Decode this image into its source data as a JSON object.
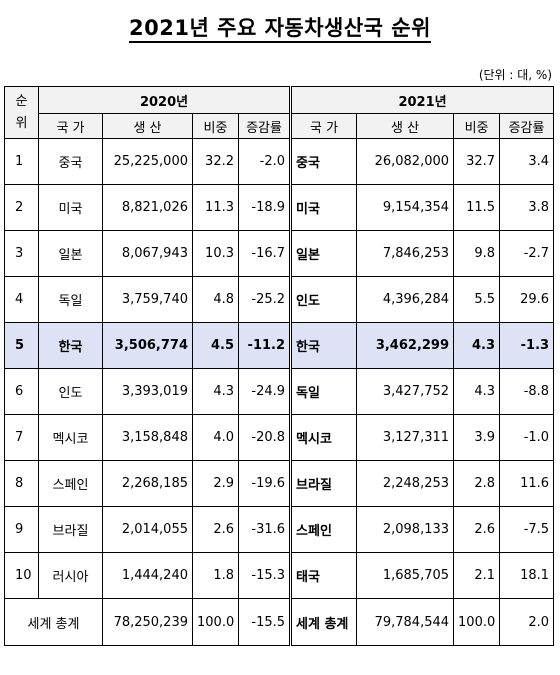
{
  "title": "2021년 주요 자동차생산국 순위",
  "unit": "(단위 : 대, %)",
  "headers": {
    "rank_top": "순",
    "rank_bottom": "위",
    "year_2020": "2020년",
    "year_2021": "2021년",
    "country": "국 가",
    "production": "생 산",
    "share": "비중",
    "change": "증감률"
  },
  "rows": [
    {
      "rank": "1",
      "c20": "중국",
      "p20": "25,225,000",
      "s20": "32.2",
      "g20": "-2.0",
      "c21": "중국",
      "p21": "26,082,000",
      "s21": "32.7",
      "g21": "3.4"
    },
    {
      "rank": "2",
      "c20": "미국",
      "p20": "8,821,026",
      "s20": "11.3",
      "g20": "-18.9",
      "c21": "미국",
      "p21": "9,154,354",
      "s21": "11.5",
      "g21": "3.8"
    },
    {
      "rank": "3",
      "c20": "일본",
      "p20": "8,067,943",
      "s20": "10.3",
      "g20": "-16.7",
      "c21": "일본",
      "p21": "7,846,253",
      "s21": "9.8",
      "g21": "-2.7"
    },
    {
      "rank": "4",
      "c20": "독일",
      "p20": "3,759,740",
      "s20": "4.8",
      "g20": "-25.2",
      "c21": "인도",
      "p21": "4,396,284",
      "s21": "5.5",
      "g21": "29.6"
    },
    {
      "rank": "5",
      "c20": "한국",
      "p20": "3,506,774",
      "s20": "4.5",
      "g20": "-11.2",
      "c21": "한국",
      "p21": "3,462,299",
      "s21": "4.3",
      "g21": "-1.3"
    },
    {
      "rank": "6",
      "c20": "인도",
      "p20": "3,393,019",
      "s20": "4.3",
      "g20": "-24.9",
      "c21": "독일",
      "p21": "3,427,752",
      "s21": "4.3",
      "g21": "-8.8"
    },
    {
      "rank": "7",
      "c20": "멕시코",
      "p20": "3,158,848",
      "s20": "4.0",
      "g20": "-20.8",
      "c21": "멕시코",
      "p21": "3,127,311",
      "s21": "3.9",
      "g21": "-1.0"
    },
    {
      "rank": "8",
      "c20": "스페인",
      "p20": "2,268,185",
      "s20": "2.9",
      "g20": "-19.6",
      "c21": "브라질",
      "p21": "2,248,253",
      "s21": "2.8",
      "g21": "11.6"
    },
    {
      "rank": "9",
      "c20": "브라질",
      "p20": "2,014,055",
      "s20": "2.6",
      "g20": "-31.6",
      "c21": "스페인",
      "p21": "2,098,133",
      "s21": "2.6",
      "g21": "-7.5"
    },
    {
      "rank": "10",
      "c20": "러시아",
      "p20": "1,444,240",
      "s20": "1.8",
      "g20": "-15.3",
      "c21": "태국",
      "p21": "1,685,705",
      "s21": "2.1",
      "g21": "18.1"
    }
  ],
  "total": {
    "label": "세계 총계",
    "p20": "78,250,239",
    "s20": "100.0",
    "g20": "-15.5",
    "label21": "세계 총계",
    "p21": "79,784,544",
    "s21": "100.0",
    "g21": "2.0"
  },
  "colors": {
    "highlight_row": "#dde3f5",
    "header_bg": "#f2f2f2"
  }
}
